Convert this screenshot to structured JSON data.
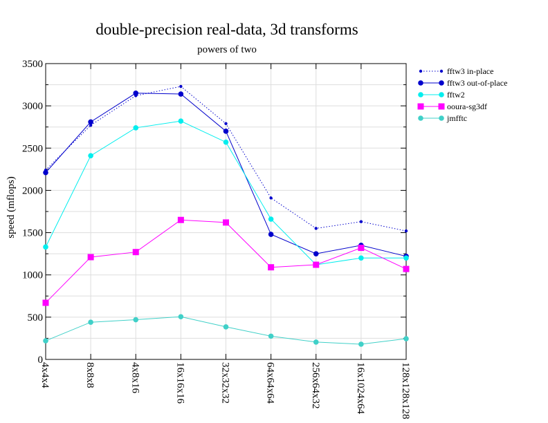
{
  "chart_data": {
    "type": "line",
    "title": "double-precision real-data, 3d transforms",
    "subtitle": "powers of two",
    "xlabel": "",
    "ylabel": "speed (mflops)",
    "ylim": [
      0,
      3500
    ],
    "yticks": [
      0,
      500,
      1000,
      1500,
      2000,
      2500,
      3000,
      3500
    ],
    "grid": true,
    "legend_position": "right",
    "categories": [
      "4x4x4",
      "8x8x8",
      "4x8x16",
      "16x16x16",
      "32x32x32",
      "64x64x64",
      "256x64x32",
      "16x1024x64",
      "128x128x128"
    ],
    "series": [
      {
        "name": "fftw3 in-place",
        "color": "#0000cc",
        "line": "dotted",
        "marker": "small-circle",
        "values": [
          2240,
          2770,
          3120,
          3230,
          2790,
          1910,
          1550,
          1630,
          1520
        ]
      },
      {
        "name": "fftw3 out-of-place",
        "color": "#0000cc",
        "line": "solid",
        "marker": "circle",
        "values": [
          2210,
          2810,
          3150,
          3140,
          2700,
          1480,
          1250,
          1350,
          1220
        ]
      },
      {
        "name": "fftw2",
        "color": "#00eeee",
        "line": "solid",
        "marker": "circle",
        "values": [
          1330,
          2410,
          2740,
          2820,
          2570,
          1660,
          1120,
          1200,
          1200
        ]
      },
      {
        "name": "ooura-sg3df",
        "color": "#ff00ff",
        "line": "solid",
        "marker": "square",
        "values": [
          670,
          1210,
          1270,
          1650,
          1620,
          1090,
          1120,
          1320,
          1070
        ]
      },
      {
        "name": "jmfftc",
        "color": "#40d0c8",
        "line": "solid",
        "marker": "circle",
        "values": [
          220,
          440,
          470,
          505,
          385,
          275,
          205,
          180,
          245
        ]
      }
    ]
  }
}
